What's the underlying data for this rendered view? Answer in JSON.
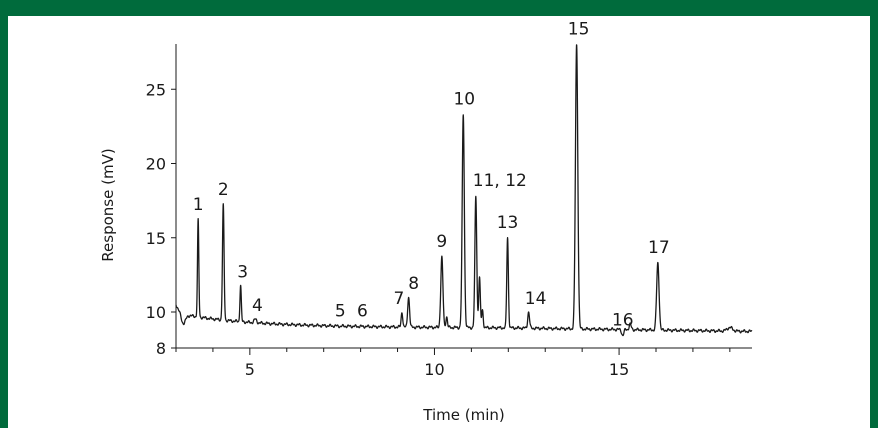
{
  "theme": {
    "frame_color": "#006b3c",
    "trace_color": "#1a1a1a"
  },
  "chart_data": {
    "type": "line",
    "title": "",
    "xlabel": "Time (min)",
    "ylabel": "Response (mV)",
    "xlim": [
      3.0,
      18.6
    ],
    "ylim": [
      8,
      28
    ],
    "x_ticks": [
      5,
      10,
      15
    ],
    "y_ticks": [
      8,
      10,
      15,
      20,
      25
    ],
    "grid": false,
    "peaks": [
      {
        "label": "1",
        "time": 3.6,
        "response": 16.2
      },
      {
        "label": "2",
        "time": 4.28,
        "response": 17.2
      },
      {
        "label": "3",
        "time": 4.75,
        "response": 11.8
      },
      {
        "label": "4",
        "time": 5.15,
        "response": 9.6
      },
      {
        "label": "5",
        "time": 7.45,
        "response": 9.2
      },
      {
        "label": "6",
        "time": 8.05,
        "response": 9.2
      },
      {
        "label": "7",
        "time": 9.12,
        "response": 10.0
      },
      {
        "label": "8",
        "time": 9.3,
        "response": 11.0
      },
      {
        "label": "9",
        "time": 10.2,
        "response": 13.7
      },
      {
        "label": "10",
        "time": 10.78,
        "response": 23.3
      },
      {
        "label": "11, 12",
        "time": 11.12,
        "response": 17.8
      },
      {
        "label": "13",
        "time": 11.98,
        "response": 15.0
      },
      {
        "label": "14",
        "time": 12.55,
        "response": 10.0
      },
      {
        "label": "15",
        "time": 13.85,
        "response": 28.0
      },
      {
        "label": "16",
        "time": 15.1,
        "response": 8.7
      },
      {
        "label": "17",
        "time": 16.05,
        "response": 13.3
      }
    ]
  }
}
